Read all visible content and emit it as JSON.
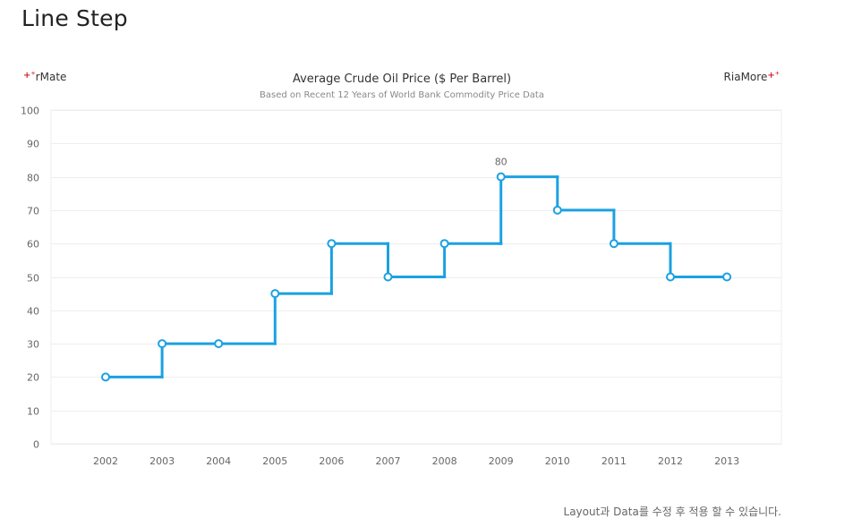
{
  "page": {
    "title": "Line Step"
  },
  "branding": {
    "left_label": "rMate",
    "right_label": "RiaMore",
    "plus_glyph": "+⁺"
  },
  "footer": {
    "note": "Layout과 Data를 수정 후 적용 할 수 있습니다."
  },
  "chart_data": {
    "type": "line",
    "subtype": "step",
    "title": "Average Crude Oil Price ($ Per Barrel)",
    "subtitle": "Based on Recent 12 Years of World Bank Commodity Price Data",
    "xlabel": "",
    "ylabel": "",
    "categories": [
      "2002",
      "2003",
      "2004",
      "2005",
      "2006",
      "2007",
      "2008",
      "2009",
      "2010",
      "2011",
      "2012",
      "2013"
    ],
    "series": [
      {
        "values": [
          20,
          30,
          30,
          45,
          60,
          50,
          60,
          80,
          70,
          60,
          50,
          50
        ]
      }
    ],
    "data_labels": [
      {
        "category": "2009",
        "value": 80,
        "text": "80"
      }
    ],
    "ylim": [
      0,
      100
    ],
    "yticks": [
      0,
      10,
      20,
      30,
      40,
      50,
      60,
      70,
      80,
      90,
      100
    ],
    "grid": true,
    "legend": "none",
    "colors": {
      "line": "#1ba1e2",
      "marker_fill": "#ffffff",
      "grid": "#eeeeee",
      "axis_text": "#666666"
    }
  }
}
